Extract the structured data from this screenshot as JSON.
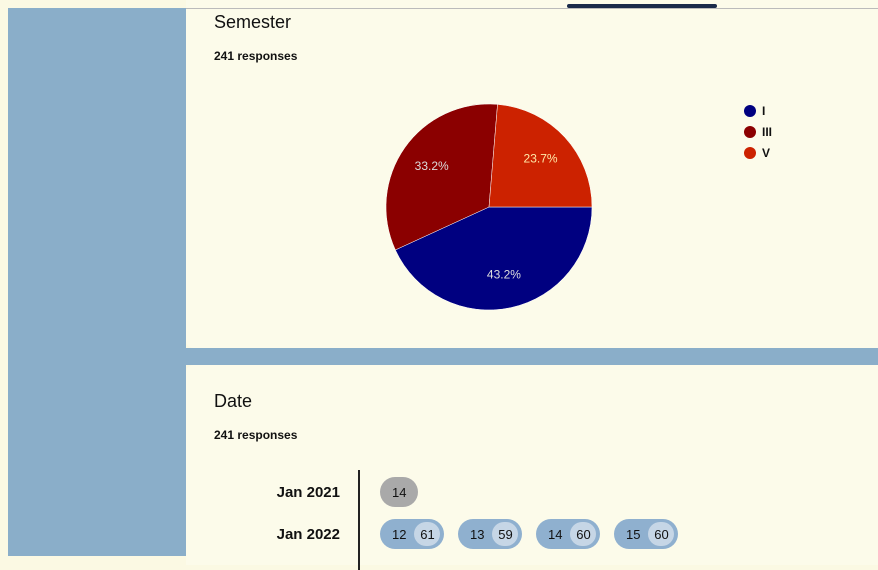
{
  "chart_data": {
    "type": "pie",
    "title": "Semester",
    "subtitle": "241 responses",
    "categories": [
      "I",
      "III",
      "V"
    ],
    "values": [
      43.2,
      33.2,
      23.7
    ],
    "value_labels": [
      "43.2%",
      "33.2%",
      "23.7%"
    ],
    "colors": [
      "#000080",
      "#8b0000",
      "#cc2200"
    ],
    "legend": "right"
  },
  "date": {
    "title": "Date",
    "responses": "241 responses",
    "rows": [
      {
        "label": "Jan 2021",
        "chips": [
          {
            "day": "14"
          }
        ]
      },
      {
        "label": "Jan 2022",
        "chips": [
          {
            "day": "12",
            "count": "61"
          },
          {
            "day": "13",
            "count": "59"
          },
          {
            "day": "14",
            "count": "60"
          },
          {
            "day": "15",
            "count": "60"
          }
        ]
      }
    ]
  }
}
